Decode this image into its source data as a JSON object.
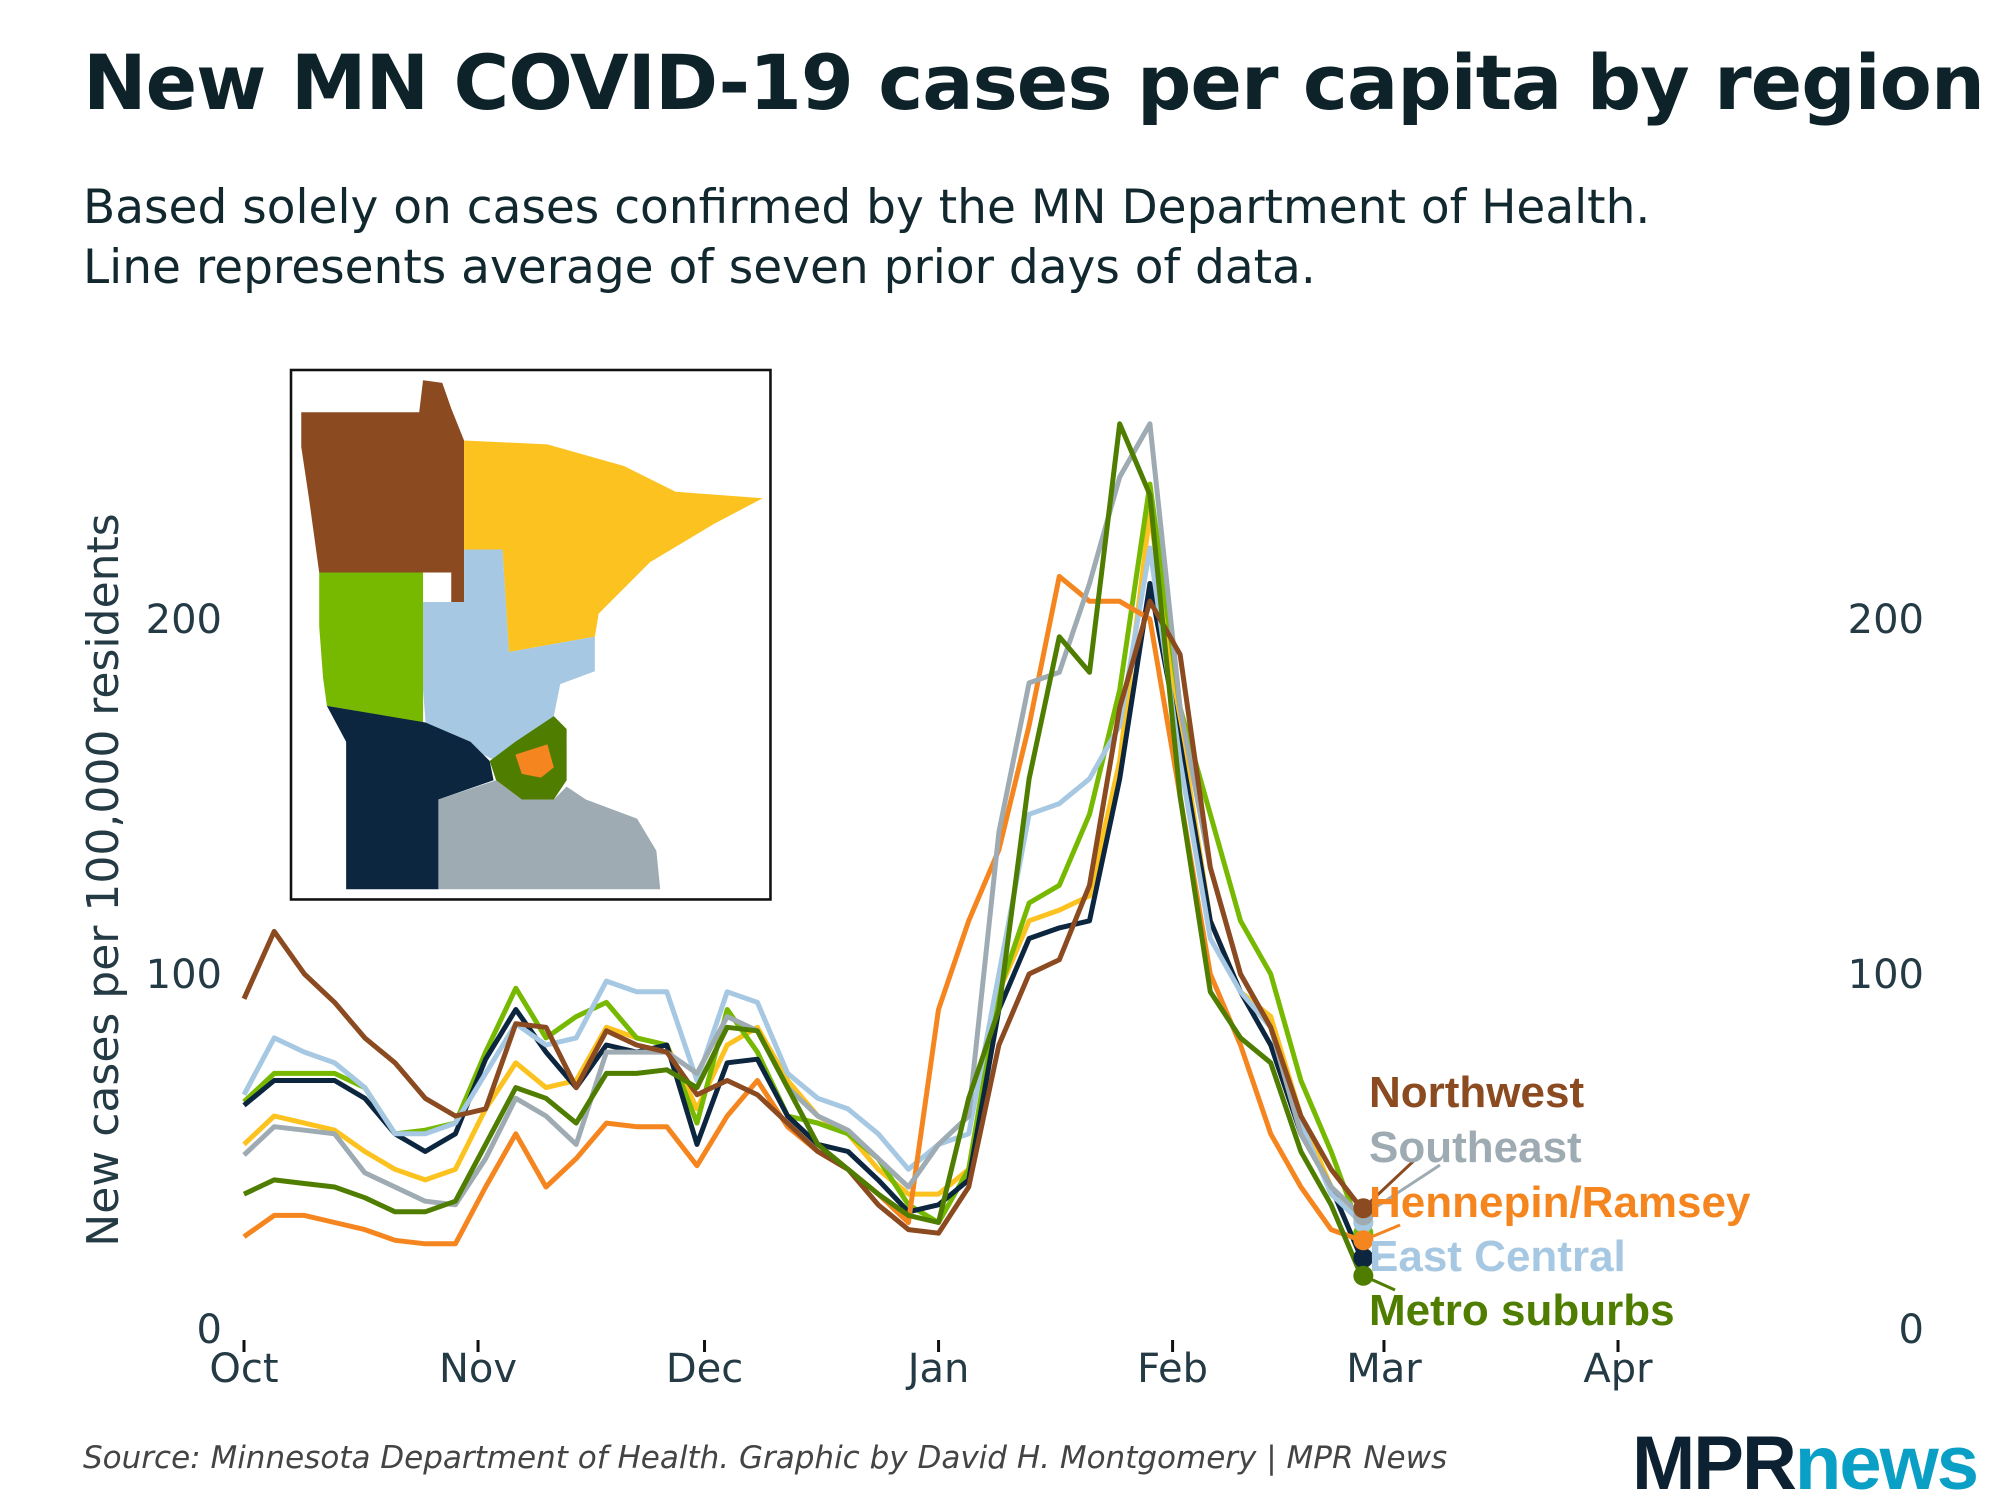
{
  "title": "New MN COVID-19 cases per capita by region",
  "subtitle_line1": "Based solely on cases confirmed by the MN Department of Health.",
  "subtitle_line2": "Line represents average of seven prior days of data.",
  "source": "Source: Minnesota Department of Health. Graphic by David H. Montgomery | MPR News",
  "logo": {
    "part1": "MPR",
    "part2": "news"
  },
  "chart_data": {
    "type": "line",
    "title": "New MN COVID-19 cases per capita by region",
    "ylabel": "New cases per 100,000 residents",
    "xlabel": "",
    "ylim": [
      0,
      270
    ],
    "xlim": [
      "2020-10-01",
      "2021-04-15"
    ],
    "y_ticks": [
      0,
      100,
      200
    ],
    "y_tick_labels": [
      "0",
      "100",
      "200"
    ],
    "x_ticks": [
      "2020-10-01",
      "2020-11-01",
      "2020-12-01",
      "2021-01-01",
      "2021-02-01",
      "2021-03-01",
      "2021-04-01"
    ],
    "x_tick_labels": [
      "Oct",
      "Nov",
      "Dec",
      "Jan",
      "Feb",
      "Mar",
      "Apr"
    ],
    "grid": false,
    "legend": "direct labels at line ends (right)",
    "dates": [
      "2020-10-01",
      "2020-10-05",
      "2020-10-09",
      "2020-10-13",
      "2020-10-17",
      "2020-10-21",
      "2020-10-25",
      "2020-10-29",
      "2020-11-02",
      "2020-11-06",
      "2020-11-10",
      "2020-11-14",
      "2020-11-18",
      "2020-11-22",
      "2020-11-26",
      "2020-11-30",
      "2020-12-04",
      "2020-12-08",
      "2020-12-12",
      "2020-12-16",
      "2020-12-20",
      "2020-12-24",
      "2020-12-28",
      "2021-01-01",
      "2021-01-05",
      "2021-01-09",
      "2021-01-13",
      "2021-01-17",
      "2021-01-21",
      "2021-01-25",
      "2021-01-29",
      "2021-02-02",
      "2021-02-06",
      "2021-02-10",
      "2021-02-14",
      "2021-02-18",
      "2021-02-22",
      "2021-02-26"
    ],
    "series": [
      {
        "key": "northeast",
        "color": "#fcc21f",
        "values": [
          52,
          60,
          58,
          56,
          50,
          45,
          42,
          45,
          62,
          75,
          68,
          70,
          85,
          82,
          80,
          62,
          80,
          85,
          70,
          60,
          55,
          45,
          38,
          38,
          45,
          95,
          115,
          118,
          122,
          160,
          230,
          170,
          115,
          95,
          88,
          60,
          40,
          30
        ]
      },
      {
        "key": "west-central",
        "color": "#76b900",
        "values": [
          64,
          72,
          72,
          72,
          68,
          55,
          56,
          58,
          78,
          96,
          82,
          88,
          92,
          82,
          80,
          58,
          90,
          78,
          60,
          58,
          55,
          48,
          35,
          30,
          45,
          95,
          120,
          125,
          145,
          180,
          238,
          175,
          145,
          115,
          100,
          70,
          50,
          27
        ]
      },
      {
        "key": "southwest",
        "color": "#0c2640",
        "values": [
          63,
          70,
          70,
          70,
          65,
          55,
          50,
          55,
          76,
          90,
          78,
          68,
          80,
          78,
          80,
          52,
          75,
          76,
          60,
          52,
          50,
          42,
          33,
          35,
          42,
          90,
          110,
          113,
          115,
          155,
          210,
          165,
          115,
          95,
          80,
          55,
          40,
          20
        ]
      },
      {
        "key": "east-central",
        "name": "East Central",
        "color": "#a6c8e2",
        "values": [
          66,
          82,
          78,
          75,
          68,
          55,
          55,
          58,
          72,
          86,
          80,
          82,
          98,
          95,
          95,
          70,
          95,
          92,
          72,
          65,
          62,
          55,
          45,
          52,
          55,
          100,
          145,
          148,
          155,
          170,
          220,
          160,
          110,
          95,
          85,
          58,
          38,
          30
        ]
      },
      {
        "key": "hennepin-ramsey",
        "name": "Hennepin/Ramsey",
        "color": "#f5861f",
        "values": [
          26,
          32,
          32,
          30,
          28,
          25,
          24,
          24,
          40,
          55,
          40,
          48,
          58,
          57,
          57,
          46,
          60,
          70,
          57,
          50,
          45,
          38,
          30,
          90,
          115,
          135,
          170,
          212,
          205,
          205,
          200,
          150,
          100,
          80,
          55,
          40,
          28,
          25
        ]
      },
      {
        "key": "southeast",
        "name": "Southeast",
        "color": "#9eabb3",
        "values": [
          49,
          57,
          56,
          55,
          44,
          40,
          36,
          35,
          48,
          65,
          60,
          52,
          78,
          78,
          78,
          72,
          88,
          84,
          68,
          60,
          56,
          48,
          40,
          52,
          60,
          140,
          182,
          185,
          210,
          240,
          255,
          175,
          130,
          100,
          85,
          55,
          40,
          32
        ]
      },
      {
        "key": "northwest",
        "name": "Northwest",
        "color": "#8b4a1f",
        "values": [
          93,
          112,
          100,
          92,
          82,
          75,
          65,
          60,
          62,
          86,
          85,
          68,
          84,
          80,
          78,
          66,
          70,
          66,
          58,
          50,
          45,
          35,
          28,
          27,
          40,
          80,
          100,
          104,
          125,
          175,
          205,
          190,
          130,
          100,
          85,
          60,
          45,
          34
        ]
      },
      {
        "key": "metro-suburbs",
        "name": "Metro suburbs",
        "color": "#4f7d00",
        "values": [
          38,
          42,
          41,
          40,
          37,
          33,
          33,
          36,
          52,
          68,
          65,
          58,
          72,
          72,
          73,
          68,
          85,
          84,
          68,
          52,
          45,
          38,
          32,
          30,
          65,
          90,
          155,
          195,
          185,
          255,
          235,
          150,
          95,
          82,
          75,
          50,
          35,
          15
        ]
      }
    ],
    "labels": [
      {
        "text": "Northwest",
        "color": "#8b4a1f"
      },
      {
        "text": "Southeast",
        "color": "#9eabb3"
      },
      {
        "text": "Hennepin/Ramsey",
        "color": "#f5861f"
      },
      {
        "text": "East Central",
        "color": "#a6c8e2"
      },
      {
        "text": "Metro suburbs",
        "color": "#4f7d00"
      }
    ]
  }
}
